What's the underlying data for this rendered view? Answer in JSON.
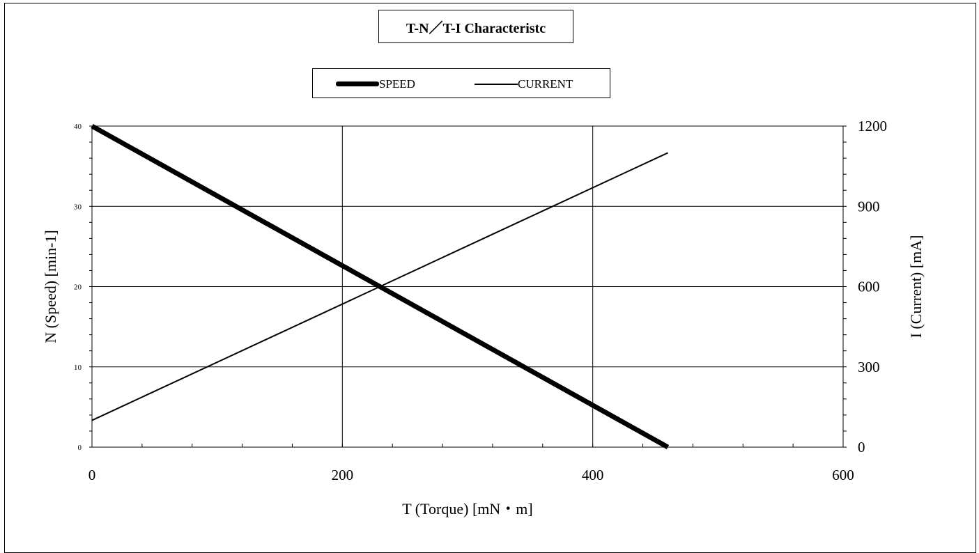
{
  "chart_data": {
    "type": "line",
    "title": "T-N／T-I Characteristc",
    "xlabel": "T (Torque) [mN・m]",
    "ylabel_left": "N (Speed) [min-1]",
    "ylabel_right": "I (Current) [mA]",
    "xlim": [
      0,
      600
    ],
    "ylim_left": [
      0,
      40
    ],
    "ylim_right": [
      0,
      1200
    ],
    "x_ticks": [
      "0",
      "200",
      "400",
      "600"
    ],
    "y_left_ticks": [
      "0",
      "10",
      "20",
      "30",
      "40"
    ],
    "y_right_ticks": [
      "0",
      "300",
      "600",
      "900",
      "1200"
    ],
    "grid": true,
    "legend_position": "top-center",
    "series": [
      {
        "name": "SPEED",
        "axis": "left",
        "line": "thick",
        "color": "#000000",
        "x": [
          0,
          460
        ],
        "values": [
          40,
          0
        ]
      },
      {
        "name": "CURRENT",
        "axis": "right",
        "line": "thin",
        "color": "#000000",
        "x": [
          0,
          460
        ],
        "values": [
          100,
          1100
        ]
      }
    ]
  }
}
